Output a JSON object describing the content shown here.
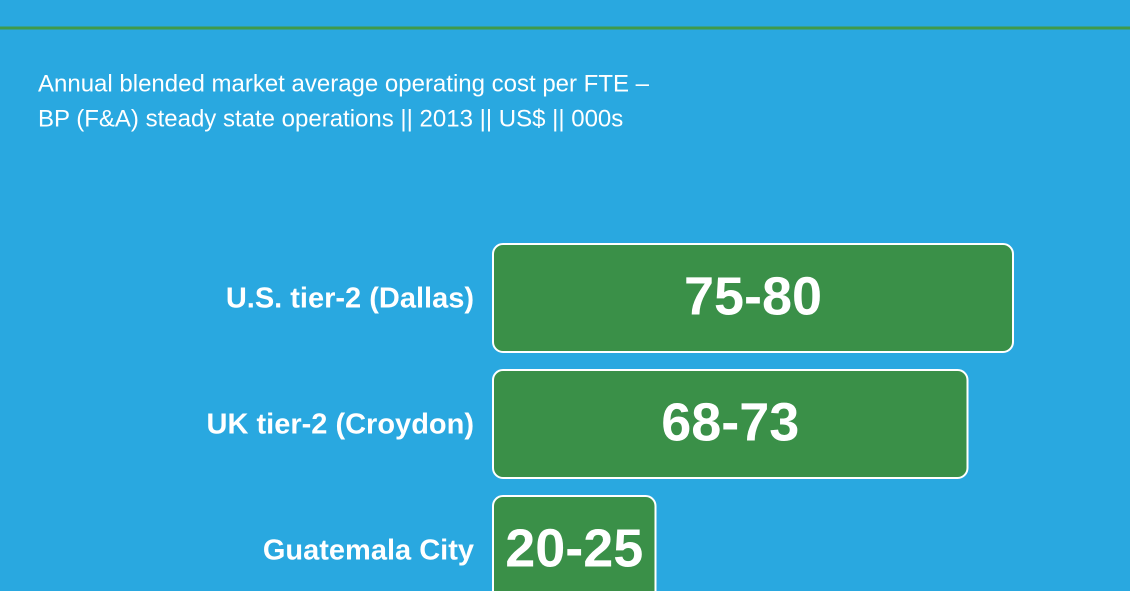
{
  "chart_data": {
    "type": "bar",
    "title": "Annual blended market average operating cost per FTE –",
    "subtitle": "BP (F&A) steady state operations || 2013 || US$ || 000s",
    "categories": [
      "U.S. tier-2 (Dallas)",
      "UK tier-2 (Croydon)",
      "Guatemala City"
    ],
    "values": [
      [
        75,
        80
      ],
      [
        68,
        73
      ],
      [
        20,
        25
      ]
    ],
    "value_labels": [
      "75-80",
      "68-73",
      "20-25"
    ],
    "color": "#3a9048"
  }
}
